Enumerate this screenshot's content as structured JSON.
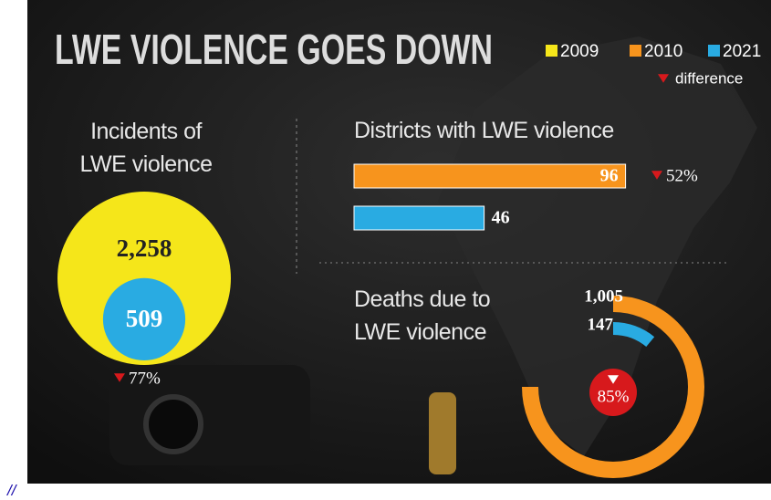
{
  "title": "LWE VIOLENCE GOES DOWN",
  "legend": [
    {
      "name": "2009",
      "color": "#f5e61a"
    },
    {
      "name": "2010",
      "color": "#f7941d"
    },
    {
      "name": "2021",
      "color": "#29abe2"
    },
    {
      "name": "difference",
      "color": "#d7191c"
    }
  ],
  "chart_data": [
    {
      "type": "bubble",
      "title": "Incidents of LWE violence",
      "series": [
        {
          "color": "#f5e61a",
          "values": [
            2258
          ],
          "value_labels": [
            "2,258"
          ]
        },
        {
          "color": "#29abe2",
          "values": [
            509
          ]
        }
      ],
      "difference": {
        "value": 77,
        "label": "77%"
      }
    },
    {
      "type": "bar",
      "title": "Districts with LWE violence",
      "series": [
        {
          "color": "#f7941d",
          "values": [
            96
          ]
        },
        {
          "color": "#29abe2",
          "values": [
            46
          ]
        }
      ],
      "difference": {
        "value": 52,
        "label": "52%"
      }
    },
    {
      "type": "donut",
      "title": "Deaths due to LWE violence",
      "series": [
        {
          "color": "#f7941d",
          "values": [
            1005
          ],
          "value_labels": [
            "1,005"
          ]
        },
        {
          "color": "#29abe2",
          "values": [
            147
          ]
        }
      ],
      "difference": {
        "value": 85,
        "label": "85%"
      }
    }
  ],
  "footer": "//"
}
